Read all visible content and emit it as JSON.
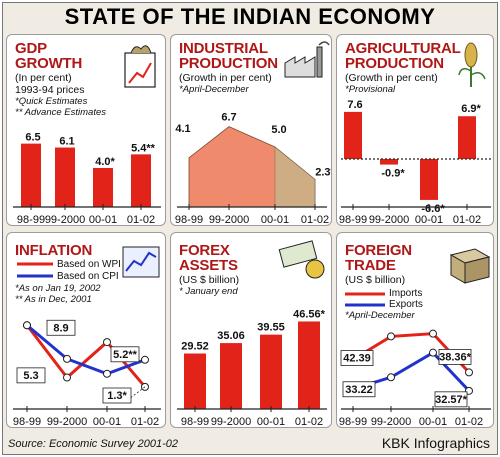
{
  "title": "STATE OF THE INDIAN ECONOMY",
  "source": "Source: Economic Survey 2001-02",
  "credit": "KBK Infographics",
  "colors": {
    "red": "#e2231a",
    "blue": "#2233cc",
    "title_red": "#b01818",
    "area_top": "#f08a6c",
    "area_side": "#c9b48a"
  },
  "chart_data": [
    {
      "id": "gdp",
      "type": "bar",
      "title": [
        "GDP",
        "GROWTH"
      ],
      "subtitle": [
        "(In per cent)",
        "1993-94 prices"
      ],
      "notes": [
        "*Quick Estimates",
        "** Advance Estimates"
      ],
      "categories": [
        "98-99",
        "99-2000",
        "00-01",
        "01-02"
      ],
      "values": [
        6.5,
        6.1,
        4.0,
        5.4
      ],
      "value_labels": [
        "6.5",
        "6.1",
        "4.0*",
        "5.4**"
      ],
      "icon": "shopping-bag-icon"
    },
    {
      "id": "industrial",
      "type": "area",
      "title": [
        "INDUSTRIAL",
        "PRODUCTION"
      ],
      "subtitle": [
        "(Growth in per cent)"
      ],
      "notes": [
        "*April-December"
      ],
      "categories": [
        "98-99",
        "99-2000",
        "00-01",
        "01-02"
      ],
      "values": [
        4.1,
        6.7,
        5.0,
        2.3
      ],
      "value_labels": [
        "4.1",
        "6.7",
        "5.0",
        "2.3*"
      ],
      "icon": "factory-icon"
    },
    {
      "id": "agricultural",
      "type": "bar",
      "title": [
        "AGRICULTURAL",
        "PRODUCTION"
      ],
      "subtitle": [
        "(Growth in per cent)"
      ],
      "notes": [
        "*Provisional"
      ],
      "categories": [
        "98-99",
        "99-2000",
        "00-01",
        "01-02"
      ],
      "values": [
        7.6,
        -0.9,
        -6.6,
        6.9
      ],
      "value_labels": [
        "7.6",
        "-0.9*",
        "-6.6*",
        "6.9*"
      ],
      "icon": "wheat-icon"
    },
    {
      "id": "inflation",
      "type": "line",
      "title": [
        "INFLATION"
      ],
      "legend": [
        "Based on WPI",
        "Based on CPI"
      ],
      "notes": [
        "*As on Jan 19, 2002",
        "** As in Dec, 2001"
      ],
      "categories": [
        "98-99",
        "99-2000",
        "00-01",
        "01-02"
      ],
      "series": [
        {
          "name": "Based on WPI",
          "values": [
            8.9,
            3.3,
            7.1,
            2.3
          ],
          "labels": [
            "8.9",
            "",
            "",
            ""
          ]
        },
        {
          "name": "Based on CPI",
          "values": [
            8.9,
            5.3,
            3.7,
            5.2
          ],
          "labels": [
            "",
            "5.3",
            "",
            "5.2**"
          ]
        }
      ],
      "extra_labels": [
        "1.3*"
      ],
      "icon": "price-chart-icon"
    },
    {
      "id": "forex",
      "type": "bar",
      "title": [
        "FOREX",
        "ASSETS"
      ],
      "subtitle": [
        "(US $ billion)"
      ],
      "notes": [
        "* January end"
      ],
      "categories": [
        "98-99",
        "99-2000",
        "00-01",
        "01-02"
      ],
      "values": [
        29.52,
        35.06,
        39.55,
        46.56
      ],
      "value_labels": [
        "29.52",
        "35.06",
        "39.55",
        "46.56*"
      ],
      "icon": "currency-icon"
    },
    {
      "id": "trade",
      "type": "line",
      "title": [
        "FOREIGN",
        "TRADE"
      ],
      "subtitle": [
        "(US $ billion)"
      ],
      "legend": [
        "Imports",
        "Exports"
      ],
      "notes": [
        "*April-December"
      ],
      "categories": [
        "98-99",
        "99-2000",
        "00-01",
        "01-02"
      ],
      "series": [
        {
          "name": "Imports",
          "values": [
            42.39,
            49.67,
            50.54,
            38.36
          ],
          "labels": [
            "42.39",
            "",
            "",
            "38.36*"
          ]
        },
        {
          "name": "Exports",
          "values": [
            33.22,
            36.82,
            44.56,
            32.57
          ],
          "labels": [
            "33.22",
            "",
            "",
            "32.57*"
          ]
        }
      ],
      "icon": "crate-icon"
    }
  ]
}
